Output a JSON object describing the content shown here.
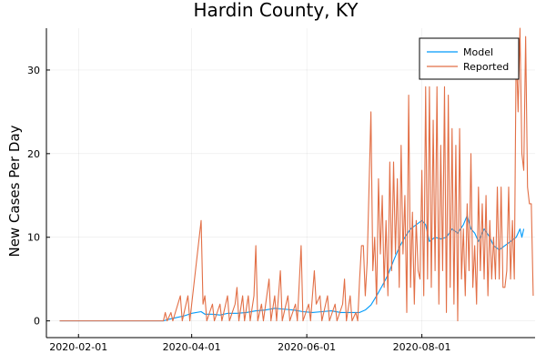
{
  "chart_data": {
    "type": "line",
    "title": "Hardin County, KY",
    "xlabel": "",
    "ylabel": "New Cases Per Day",
    "x_type": "date",
    "x_start": "2020-01-22",
    "x_ticks": [
      "2020-02-01",
      "2020-04-01",
      "2020-06-01",
      "2020-08-01"
    ],
    "xlim": [
      "2020-01-15",
      "2020-09-30"
    ],
    "ylim": [
      -2,
      35
    ],
    "y_ticks": [
      0,
      10,
      20,
      30
    ],
    "grid": true,
    "legend_position": "top-right",
    "colors": {
      "Model": "#009AFA",
      "Reported": "#E26F46"
    },
    "series": [
      {
        "name": "Model",
        "points": [
          [
            "2020-01-22",
            0
          ],
          [
            "2020-03-17",
            0
          ],
          [
            "2020-03-20",
            0.2
          ],
          [
            "2020-03-24",
            0.4
          ],
          [
            "2020-03-28",
            0.6
          ],
          [
            "2020-04-01",
            0.9
          ],
          [
            "2020-04-06",
            1.1
          ],
          [
            "2020-04-08",
            0.8
          ],
          [
            "2020-04-12",
            0.8
          ],
          [
            "2020-04-16",
            0.7
          ],
          [
            "2020-04-20",
            0.9
          ],
          [
            "2020-04-25",
            0.9
          ],
          [
            "2020-04-30",
            1.0
          ],
          [
            "2020-05-05",
            1.2
          ],
          [
            "2020-05-10",
            1.3
          ],
          [
            "2020-05-15",
            1.5
          ],
          [
            "2020-05-20",
            1.4
          ],
          [
            "2020-05-25",
            1.3
          ],
          [
            "2020-05-30",
            1.1
          ],
          [
            "2020-06-04",
            1.0
          ],
          [
            "2020-06-09",
            1.1
          ],
          [
            "2020-06-14",
            1.2
          ],
          [
            "2020-06-19",
            1.0
          ],
          [
            "2020-06-24",
            1.0
          ],
          [
            "2020-06-29",
            1.0
          ],
          [
            "2020-07-02",
            1.3
          ],
          [
            "2020-07-05",
            1.9
          ],
          [
            "2020-07-08",
            3.0
          ],
          [
            "2020-07-11",
            4.2
          ],
          [
            "2020-07-14",
            5.5
          ],
          [
            "2020-07-17",
            7.2
          ],
          [
            "2020-07-20",
            8.8
          ],
          [
            "2020-07-23",
            10.0
          ],
          [
            "2020-07-26",
            11.0
          ],
          [
            "2020-07-29",
            11.5
          ],
          [
            "2020-08-01",
            12.0
          ],
          [
            "2020-08-03",
            11.5
          ],
          [
            "2020-08-05",
            9.5
          ],
          [
            "2020-08-08",
            10.0
          ],
          [
            "2020-08-11",
            9.8
          ],
          [
            "2020-08-14",
            10.0
          ],
          [
            "2020-08-17",
            11.0
          ],
          [
            "2020-08-20",
            10.5
          ],
          [
            "2020-08-23",
            11.5
          ],
          [
            "2020-08-25",
            12.6
          ],
          [
            "2020-08-27",
            11.0
          ],
          [
            "2020-08-29",
            10.5
          ],
          [
            "2020-08-31",
            9.5
          ],
          [
            "2020-09-03",
            11.0
          ],
          [
            "2020-09-06",
            10.0
          ],
          [
            "2020-09-08",
            9.0
          ],
          [
            "2020-09-11",
            8.5
          ],
          [
            "2020-09-14",
            9.0
          ],
          [
            "2020-09-17",
            9.5
          ],
          [
            "2020-09-20",
            10.0
          ],
          [
            "2020-09-22",
            11.0
          ],
          [
            "2020-09-23",
            10.0
          ],
          [
            "2020-09-24",
            11.0
          ]
        ]
      },
      {
        "name": "Reported",
        "points": [
          [
            "2020-01-22",
            0
          ],
          [
            "2020-03-17",
            0
          ],
          [
            "2020-03-18",
            1
          ],
          [
            "2020-03-19",
            0
          ],
          [
            "2020-03-21",
            1
          ],
          [
            "2020-03-22",
            0
          ],
          [
            "2020-03-26",
            3
          ],
          [
            "2020-03-27",
            0
          ],
          [
            "2020-03-30",
            3
          ],
          [
            "2020-03-31",
            0
          ],
          [
            "2020-04-06",
            12
          ],
          [
            "2020-04-07",
            2
          ],
          [
            "2020-04-08",
            3
          ],
          [
            "2020-04-09",
            0
          ],
          [
            "2020-04-12",
            2
          ],
          [
            "2020-04-13",
            0
          ],
          [
            "2020-04-16",
            2
          ],
          [
            "2020-04-17",
            0
          ],
          [
            "2020-04-20",
            3
          ],
          [
            "2020-04-21",
            0
          ],
          [
            "2020-04-24",
            2
          ],
          [
            "2020-04-25",
            4
          ],
          [
            "2020-04-26",
            0
          ],
          [
            "2020-04-28",
            3
          ],
          [
            "2020-04-29",
            0
          ],
          [
            "2020-05-01",
            3
          ],
          [
            "2020-05-02",
            0
          ],
          [
            "2020-05-04",
            3
          ],
          [
            "2020-05-05",
            9
          ],
          [
            "2020-05-06",
            0
          ],
          [
            "2020-05-08",
            2
          ],
          [
            "2020-05-09",
            0
          ],
          [
            "2020-05-12",
            5
          ],
          [
            "2020-05-13",
            0
          ],
          [
            "2020-05-15",
            3
          ],
          [
            "2020-05-16",
            0
          ],
          [
            "2020-05-18",
            6
          ],
          [
            "2020-05-19",
            0
          ],
          [
            "2020-05-22",
            3
          ],
          [
            "2020-05-23",
            0
          ],
          [
            "2020-05-26",
            2
          ],
          [
            "2020-05-27",
            0
          ],
          [
            "2020-05-29",
            9
          ],
          [
            "2020-05-30",
            0
          ],
          [
            "2020-06-02",
            2
          ],
          [
            "2020-06-03",
            0
          ],
          [
            "2020-06-05",
            6
          ],
          [
            "2020-06-06",
            2
          ],
          [
            "2020-06-08",
            3
          ],
          [
            "2020-06-09",
            0
          ],
          [
            "2020-06-12",
            3
          ],
          [
            "2020-06-13",
            0
          ],
          [
            "2020-06-16",
            2
          ],
          [
            "2020-06-17",
            0
          ],
          [
            "2020-06-20",
            2
          ],
          [
            "2020-06-21",
            5
          ],
          [
            "2020-06-22",
            0
          ],
          [
            "2020-06-24",
            3
          ],
          [
            "2020-06-25",
            0
          ],
          [
            "2020-06-27",
            1
          ],
          [
            "2020-06-28",
            0
          ],
          [
            "2020-06-29",
            5
          ],
          [
            "2020-06-30",
            9
          ],
          [
            "2020-07-01",
            9
          ],
          [
            "2020-07-02",
            3
          ],
          [
            "2020-07-03",
            7
          ],
          [
            "2020-07-05",
            25
          ],
          [
            "2020-07-06",
            6
          ],
          [
            "2020-07-07",
            10
          ],
          [
            "2020-07-08",
            2
          ],
          [
            "2020-07-09",
            17
          ],
          [
            "2020-07-10",
            8
          ],
          [
            "2020-07-11",
            15
          ],
          [
            "2020-07-12",
            4
          ],
          [
            "2020-07-13",
            12
          ],
          [
            "2020-07-14",
            3
          ],
          [
            "2020-07-15",
            19
          ],
          [
            "2020-07-16",
            6
          ],
          [
            "2020-07-17",
            19
          ],
          [
            "2020-07-18",
            8
          ],
          [
            "2020-07-19",
            17
          ],
          [
            "2020-07-20",
            4
          ],
          [
            "2020-07-21",
            21
          ],
          [
            "2020-07-22",
            8
          ],
          [
            "2020-07-23",
            15
          ],
          [
            "2020-07-24",
            1
          ],
          [
            "2020-07-25",
            27
          ],
          [
            "2020-07-26",
            4
          ],
          [
            "2020-07-27",
            13
          ],
          [
            "2020-07-28",
            2
          ],
          [
            "2020-07-29",
            12
          ],
          [
            "2020-07-30",
            6
          ],
          [
            "2020-07-31",
            5
          ],
          [
            "2020-08-01",
            18
          ],
          [
            "2020-08-02",
            3
          ],
          [
            "2020-08-03",
            28
          ],
          [
            "2020-08-04",
            5
          ],
          [
            "2020-08-05",
            28
          ],
          [
            "2020-08-06",
            4
          ],
          [
            "2020-08-07",
            24
          ],
          [
            "2020-08-08",
            6
          ],
          [
            "2020-08-09",
            28
          ],
          [
            "2020-08-10",
            2
          ],
          [
            "2020-08-11",
            21
          ],
          [
            "2020-08-12",
            6
          ],
          [
            "2020-08-13",
            28
          ],
          [
            "2020-08-14",
            1
          ],
          [
            "2020-08-15",
            27
          ],
          [
            "2020-08-16",
            4
          ],
          [
            "2020-08-17",
            23
          ],
          [
            "2020-08-18",
            2
          ],
          [
            "2020-08-19",
            21
          ],
          [
            "2020-08-20",
            0
          ],
          [
            "2020-08-21",
            23
          ],
          [
            "2020-08-22",
            5
          ],
          [
            "2020-08-23",
            11
          ],
          [
            "2020-08-24",
            3
          ],
          [
            "2020-08-25",
            14
          ],
          [
            "2020-08-26",
            6
          ],
          [
            "2020-08-27",
            20
          ],
          [
            "2020-08-28",
            4
          ],
          [
            "2020-08-29",
            9
          ],
          [
            "2020-08-30",
            2
          ],
          [
            "2020-08-31",
            16
          ],
          [
            "2020-09-01",
            6
          ],
          [
            "2020-09-02",
            14
          ],
          [
            "2020-09-03",
            5
          ],
          [
            "2020-09-04",
            15
          ],
          [
            "2020-09-05",
            3
          ],
          [
            "2020-09-06",
            12
          ],
          [
            "2020-09-07",
            5
          ],
          [
            "2020-09-08",
            10
          ],
          [
            "2020-09-09",
            5
          ],
          [
            "2020-09-10",
            16
          ],
          [
            "2020-09-11",
            5
          ],
          [
            "2020-09-12",
            16
          ],
          [
            "2020-09-13",
            4
          ],
          [
            "2020-09-14",
            4
          ],
          [
            "2020-09-15",
            6
          ],
          [
            "2020-09-16",
            16
          ],
          [
            "2020-09-17",
            5
          ],
          [
            "2020-09-18",
            12
          ],
          [
            "2020-09-19",
            5
          ],
          [
            "2020-09-20",
            33
          ],
          [
            "2020-09-21",
            25
          ],
          [
            "2020-09-22",
            35
          ],
          [
            "2020-09-23",
            20
          ],
          [
            "2020-09-24",
            18
          ],
          [
            "2020-09-25",
            34
          ],
          [
            "2020-09-26",
            16
          ],
          [
            "2020-09-27",
            14
          ],
          [
            "2020-09-28",
            14
          ],
          [
            "2020-09-29",
            3
          ]
        ]
      }
    ]
  }
}
